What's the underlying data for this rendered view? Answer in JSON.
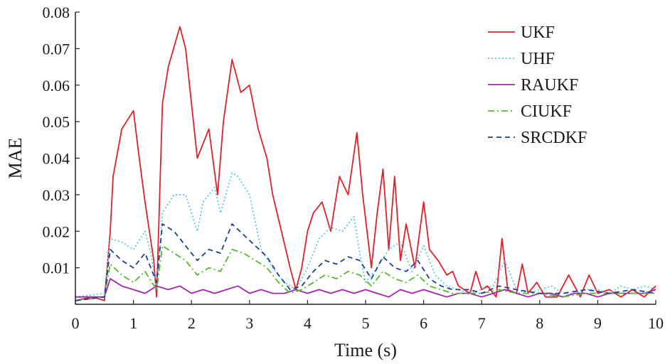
{
  "chart_data": {
    "type": "line",
    "xlabel": "Time (s)",
    "ylabel": "MAE",
    "xlim": [
      0,
      10
    ],
    "ylim": [
      0,
      0.08
    ],
    "x_ticks": [
      "0",
      "1",
      "2",
      "3",
      "4",
      "5",
      "6",
      "7",
      "8",
      "9",
      "10"
    ],
    "y_ticks": [
      "0.01",
      "0.02",
      "0.03",
      "0.04",
      "0.05",
      "0.06",
      "0.07",
      "0.08"
    ],
    "grid": false,
    "legend_position": "top-right",
    "series": [
      {
        "name": "UKF",
        "color": "#e0202a",
        "dash": "solid",
        "x": [
          0,
          0.3,
          0.5,
          0.6,
          0.65,
          0.8,
          1.0,
          1.1,
          1.2,
          1.35,
          1.4,
          1.5,
          1.6,
          1.8,
          1.9,
          2.0,
          2.1,
          2.3,
          2.45,
          2.55,
          2.7,
          2.85,
          3.0,
          3.15,
          3.3,
          3.4,
          3.55,
          3.7,
          3.8,
          3.9,
          4.0,
          4.1,
          4.25,
          4.4,
          4.55,
          4.7,
          4.85,
          4.95,
          5.1,
          5.2,
          5.3,
          5.4,
          5.5,
          5.6,
          5.7,
          5.85,
          6.0,
          6.1,
          6.25,
          6.4,
          6.5,
          6.6,
          6.8,
          6.9,
          7.0,
          7.1,
          7.25,
          7.35,
          7.45,
          7.6,
          7.7,
          7.8,
          7.95,
          8.1,
          8.3,
          8.5,
          8.7,
          8.85,
          9.0,
          9.2,
          9.4,
          9.6,
          9.8,
          10.0
        ],
        "y": [
          0.001,
          0.002,
          0.001,
          0.02,
          0.035,
          0.048,
          0.053,
          0.04,
          0.028,
          0.012,
          0.002,
          0.055,
          0.065,
          0.076,
          0.07,
          0.055,
          0.04,
          0.048,
          0.03,
          0.05,
          0.067,
          0.058,
          0.06,
          0.048,
          0.04,
          0.03,
          0.02,
          0.01,
          0.004,
          0.01,
          0.02,
          0.025,
          0.028,
          0.02,
          0.035,
          0.03,
          0.047,
          0.03,
          0.01,
          0.025,
          0.037,
          0.015,
          0.035,
          0.012,
          0.022,
          0.01,
          0.028,
          0.015,
          0.012,
          0.008,
          0.009,
          0.005,
          0.003,
          0.009,
          0.004,
          0.005,
          0.002,
          0.018,
          0.004,
          0.003,
          0.011,
          0.003,
          0.006,
          0.002,
          0.002,
          0.008,
          0.002,
          0.008,
          0.003,
          0.004,
          0.002,
          0.004,
          0.002,
          0.005
        ]
      },
      {
        "name": "UHF",
        "color": "#5cc8e6",
        "dash": "dotted",
        "x": [
          0,
          0.5,
          0.6,
          0.8,
          1.0,
          1.2,
          1.3,
          1.4,
          1.5,
          1.7,
          1.9,
          2.1,
          2.2,
          2.4,
          2.5,
          2.7,
          2.8,
          3.0,
          3.2,
          3.4,
          3.6,
          3.8,
          4.0,
          4.2,
          4.4,
          4.6,
          4.8,
          4.9,
          5.0,
          5.2,
          5.4,
          5.6,
          5.8,
          6.0,
          6.2,
          6.4,
          6.6,
          6.8,
          7.0,
          7.2,
          7.4,
          7.6,
          7.8,
          8.0,
          8.2,
          8.4,
          8.6,
          8.8,
          9.0,
          9.2,
          9.4,
          9.6,
          9.8,
          10.0
        ],
        "y": [
          0.002,
          0.003,
          0.018,
          0.017,
          0.015,
          0.02,
          0.014,
          0.004,
          0.025,
          0.03,
          0.03,
          0.02,
          0.028,
          0.032,
          0.025,
          0.036,
          0.035,
          0.03,
          0.015,
          0.01,
          0.006,
          0.004,
          0.01,
          0.018,
          0.021,
          0.02,
          0.024,
          0.014,
          0.006,
          0.01,
          0.015,
          0.017,
          0.009,
          0.016,
          0.008,
          0.005,
          0.004,
          0.003,
          0.004,
          0.005,
          0.012,
          0.004,
          0.003,
          0.004,
          0.005,
          0.003,
          0.003,
          0.004,
          0.004,
          0.003,
          0.005,
          0.004,
          0.005,
          0.004
        ]
      },
      {
        "name": "RAUKF",
        "color": "#a028a8",
        "dash": "solid",
        "x": [
          0,
          0.5,
          0.6,
          0.8,
          1.0,
          1.2,
          1.4,
          1.6,
          1.8,
          2.0,
          2.2,
          2.4,
          2.6,
          2.8,
          3.0,
          3.2,
          3.4,
          3.6,
          3.8,
          4.0,
          4.2,
          4.4,
          4.6,
          4.8,
          5.0,
          5.2,
          5.4,
          5.6,
          5.8,
          6.0,
          6.2,
          6.4,
          6.6,
          6.8,
          7.0,
          7.2,
          7.4,
          7.6,
          7.8,
          8.0,
          8.2,
          8.4,
          8.6,
          8.8,
          9.0,
          9.2,
          9.4,
          9.6,
          9.8,
          10.0
        ],
        "y": [
          0.002,
          0.002,
          0.007,
          0.005,
          0.004,
          0.003,
          0.005,
          0.004,
          0.005,
          0.003,
          0.004,
          0.003,
          0.004,
          0.005,
          0.003,
          0.004,
          0.003,
          0.003,
          0.004,
          0.003,
          0.004,
          0.003,
          0.004,
          0.003,
          0.004,
          0.003,
          0.002,
          0.004,
          0.003,
          0.004,
          0.003,
          0.002,
          0.003,
          0.003,
          0.002,
          0.003,
          0.004,
          0.003,
          0.002,
          0.003,
          0.003,
          0.002,
          0.003,
          0.003,
          0.002,
          0.003,
          0.003,
          0.003,
          0.003,
          0.004
        ]
      },
      {
        "name": "CIUKF",
        "color": "#55b82e",
        "dash": "dashdot",
        "x": [
          0,
          0.5,
          0.6,
          0.8,
          1.0,
          1.2,
          1.4,
          1.5,
          1.7,
          1.9,
          2.1,
          2.3,
          2.5,
          2.7,
          2.9,
          3.1,
          3.3,
          3.5,
          3.7,
          3.9,
          4.1,
          4.3,
          4.5,
          4.7,
          4.9,
          5.1,
          5.3,
          5.5,
          5.7,
          5.9,
          6.1,
          6.3,
          6.5,
          6.8,
          7.0,
          7.3,
          7.6,
          8.0,
          8.4,
          8.8,
          9.2,
          9.6,
          10.0
        ],
        "y": [
          0.001,
          0.002,
          0.011,
          0.008,
          0.006,
          0.009,
          0.004,
          0.016,
          0.014,
          0.012,
          0.008,
          0.01,
          0.009,
          0.015,
          0.014,
          0.012,
          0.01,
          0.006,
          0.003,
          0.004,
          0.006,
          0.008,
          0.007,
          0.009,
          0.008,
          0.005,
          0.009,
          0.007,
          0.006,
          0.008,
          0.005,
          0.004,
          0.003,
          0.003,
          0.003,
          0.004,
          0.003,
          0.003,
          0.002,
          0.003,
          0.003,
          0.003,
          0.003
        ]
      },
      {
        "name": "SRCDKF",
        "color": "#1e3f8f",
        "dash": "dashed",
        "x": [
          0,
          0.5,
          0.6,
          0.8,
          1.0,
          1.2,
          1.4,
          1.5,
          1.7,
          1.9,
          2.1,
          2.3,
          2.5,
          2.7,
          2.9,
          3.1,
          3.3,
          3.5,
          3.7,
          3.9,
          4.1,
          4.3,
          4.5,
          4.7,
          4.9,
          5.1,
          5.3,
          5.5,
          5.7,
          5.9,
          6.1,
          6.3,
          6.5,
          6.8,
          7.0,
          7.3,
          7.6,
          8.0,
          8.4,
          8.8,
          9.2,
          9.6,
          10.0
        ],
        "y": [
          0.001,
          0.002,
          0.015,
          0.012,
          0.01,
          0.014,
          0.006,
          0.022,
          0.02,
          0.016,
          0.012,
          0.015,
          0.014,
          0.022,
          0.019,
          0.016,
          0.013,
          0.008,
          0.004,
          0.005,
          0.009,
          0.012,
          0.011,
          0.013,
          0.012,
          0.007,
          0.013,
          0.01,
          0.009,
          0.012,
          0.007,
          0.005,
          0.004,
          0.004,
          0.003,
          0.005,
          0.004,
          0.003,
          0.003,
          0.004,
          0.003,
          0.004,
          0.003
        ]
      }
    ]
  }
}
